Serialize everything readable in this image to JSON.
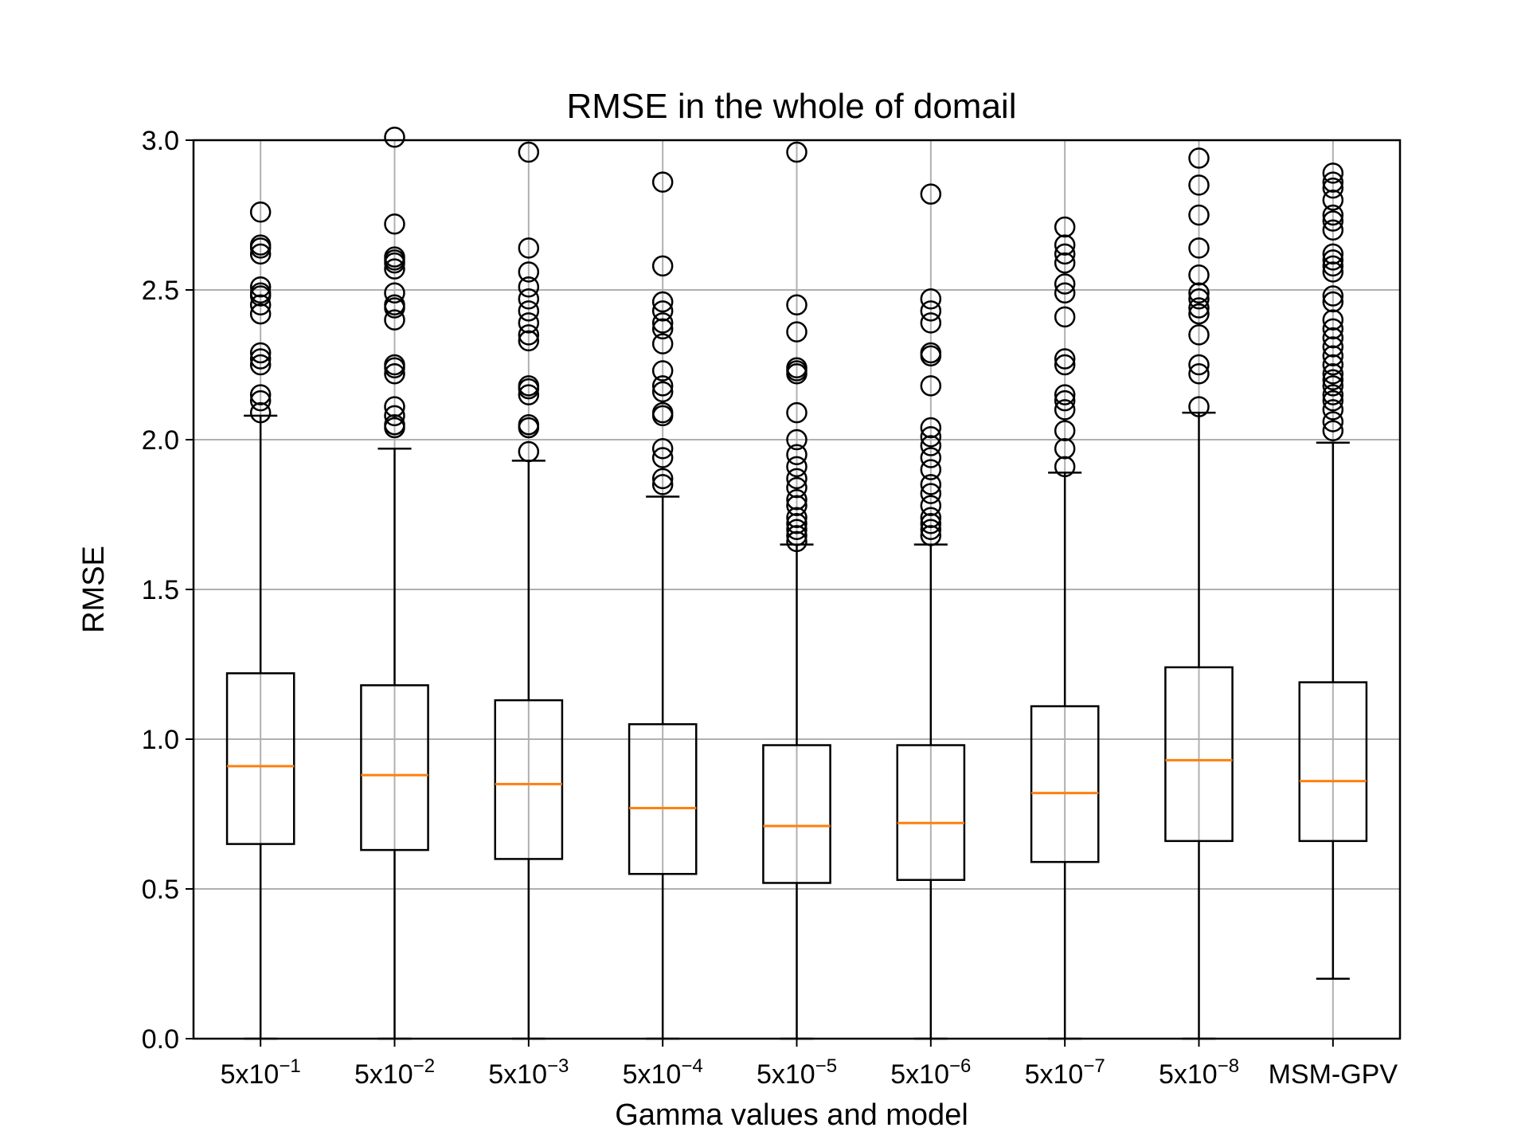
{
  "chart_data": {
    "type": "boxplot",
    "title": "RMSE in the whole of domail",
    "xlabel": "Gamma values and model",
    "ylabel": "RMSE",
    "ylim": [
      0.0,
      3.0
    ],
    "yticks": [
      0.0,
      0.5,
      1.0,
      1.5,
      2.0,
      2.5,
      3.0
    ],
    "ytick_labels": [
      "0.0",
      "0.5",
      "1.0",
      "1.5",
      "2.0",
      "2.5",
      "3.0"
    ],
    "grid": true,
    "colors": {
      "box": "#000000",
      "median": "#ff7f0e",
      "grid": "#b0b0b0",
      "flier": "#000000"
    },
    "categories": [
      {
        "base": "5x10",
        "exp": "−1"
      },
      {
        "base": "5x10",
        "exp": "−2"
      },
      {
        "base": "5x10",
        "exp": "−3"
      },
      {
        "base": "5x10",
        "exp": "−4"
      },
      {
        "base": "5x10",
        "exp": "−5"
      },
      {
        "base": "5x10",
        "exp": "−6"
      },
      {
        "base": "5x10",
        "exp": "−7"
      },
      {
        "base": "5x10",
        "exp": "−8"
      },
      {
        "base": "MSM-GPV",
        "exp": ""
      }
    ],
    "boxes": [
      {
        "whisker_low": 0.0,
        "q1": 0.65,
        "median": 0.91,
        "q3": 1.22,
        "whisker_high": 2.08,
        "fliers": [
          2.09,
          2.13,
          2.15,
          2.25,
          2.27,
          2.29,
          2.42,
          2.45,
          2.48,
          2.49,
          2.51,
          2.62,
          2.64,
          2.65,
          2.76
        ]
      },
      {
        "whisker_low": 0.0,
        "q1": 0.63,
        "median": 0.88,
        "q3": 1.18,
        "whisker_high": 1.97,
        "fliers": [
          2.04,
          2.05,
          2.08,
          2.11,
          2.22,
          2.24,
          2.25,
          2.4,
          2.44,
          2.45,
          2.49,
          2.57,
          2.59,
          2.6,
          2.61,
          2.72,
          3.01
        ]
      },
      {
        "whisker_low": 0.0,
        "q1": 0.6,
        "median": 0.85,
        "q3": 1.13,
        "whisker_high": 1.93,
        "fliers": [
          1.96,
          2.04,
          2.05,
          2.15,
          2.17,
          2.18,
          2.33,
          2.35,
          2.39,
          2.43,
          2.47,
          2.51,
          2.56,
          2.64,
          2.96
        ]
      },
      {
        "whisker_low": 0.0,
        "q1": 0.55,
        "median": 0.77,
        "q3": 1.05,
        "whisker_high": 1.81,
        "fliers": [
          1.85,
          1.87,
          1.94,
          1.97,
          2.08,
          2.09,
          2.16,
          2.18,
          2.23,
          2.32,
          2.37,
          2.39,
          2.43,
          2.46,
          2.58,
          2.86
        ]
      },
      {
        "whisker_low": 0.0,
        "q1": 0.52,
        "median": 0.71,
        "q3": 0.98,
        "whisker_high": 1.65,
        "fliers": [
          1.66,
          1.68,
          1.7,
          1.72,
          1.74,
          1.78,
          1.8,
          1.84,
          1.87,
          1.91,
          1.95,
          2.0,
          2.09,
          2.22,
          2.23,
          2.24,
          2.36,
          2.45,
          2.96
        ]
      },
      {
        "whisker_low": 0.0,
        "q1": 0.53,
        "median": 0.72,
        "q3": 0.98,
        "whisker_high": 1.65,
        "fliers": [
          1.68,
          1.7,
          1.72,
          1.74,
          1.78,
          1.82,
          1.85,
          1.9,
          1.94,
          1.98,
          2.01,
          2.04,
          2.18,
          2.28,
          2.29,
          2.39,
          2.43,
          2.47,
          2.82
        ]
      },
      {
        "whisker_low": 0.0,
        "q1": 0.59,
        "median": 0.82,
        "q3": 1.11,
        "whisker_high": 1.89,
        "fliers": [
          1.91,
          1.97,
          2.03,
          2.1,
          2.13,
          2.15,
          2.25,
          2.27,
          2.41,
          2.49,
          2.52,
          2.59,
          2.62,
          2.65,
          2.71
        ]
      },
      {
        "whisker_low": 0.0,
        "q1": 0.66,
        "median": 0.93,
        "q3": 1.24,
        "whisker_high": 2.09,
        "fliers": [
          2.11,
          2.22,
          2.25,
          2.35,
          2.42,
          2.44,
          2.47,
          2.49,
          2.55,
          2.64,
          2.75,
          2.85,
          2.94
        ]
      },
      {
        "whisker_low": 0.2,
        "q1": 0.66,
        "median": 0.86,
        "q3": 1.19,
        "whisker_high": 1.99,
        "fliers": [
          2.03,
          2.06,
          2.1,
          2.13,
          2.15,
          2.18,
          2.2,
          2.22,
          2.25,
          2.28,
          2.31,
          2.34,
          2.37,
          2.4,
          2.46,
          2.48,
          2.56,
          2.58,
          2.6,
          2.62,
          2.7,
          2.73,
          2.75,
          2.8,
          2.84,
          2.86,
          2.89
        ]
      }
    ]
  }
}
